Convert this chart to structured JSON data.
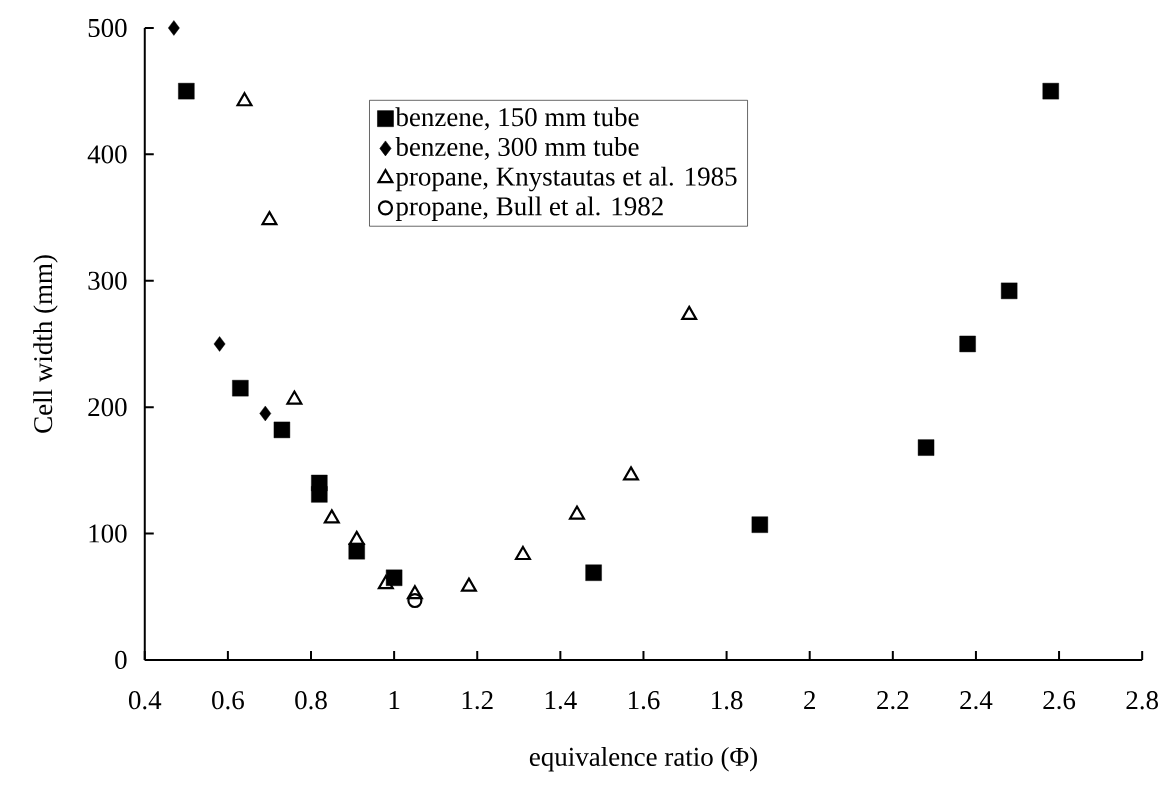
{
  "chart_data": {
    "type": "scatter",
    "xlabel": "equivalence ratio (Φ)",
    "ylabel": "Cell width (mm)",
    "xlim": [
      0.4,
      2.8
    ],
    "ylim": [
      0,
      500
    ],
    "xticks": [
      0.4,
      0.6,
      0.8,
      1,
      1.2,
      1.4,
      1.6,
      1.8,
      2,
      2.2,
      2.4,
      2.6,
      2.8
    ],
    "yticks": [
      0,
      100,
      200,
      300,
      400,
      500
    ],
    "legend": "top",
    "grid": false,
    "series": [
      {
        "name": "benzene, 150 mm tube",
        "color": "#000000",
        "marker": "square",
        "x": [
          0.5,
          0.63,
          0.73,
          0.82,
          0.82,
          0.91,
          1.0,
          1.48,
          1.88,
          2.28,
          2.38,
          2.48,
          2.58
        ],
        "values": [
          450,
          215,
          182,
          140,
          131,
          86,
          65,
          69,
          107,
          168,
          250,
          292,
          450
        ]
      },
      {
        "name": "benzene, 300 mm tube",
        "color": "#000000",
        "marker": "diamond",
        "x": [
          0.47,
          0.58,
          0.69
        ],
        "values": [
          500,
          250,
          195
        ]
      },
      {
        "name": "propane, Knystautas et al. 1985",
        "color": "#000000",
        "marker": "triangle",
        "x": [
          0.64,
          0.7,
          0.76,
          0.85,
          0.91,
          0.98,
          1.05,
          1.18,
          1.31,
          1.44,
          1.57,
          1.71
        ],
        "values": [
          442,
          348,
          206,
          112,
          95,
          60,
          52,
          58,
          83,
          115,
          146,
          273
        ]
      },
      {
        "name": "propane, Bull et al. 1982",
        "color": "#000000",
        "marker": "circle",
        "x": [
          1.05
        ],
        "values": [
          47
        ]
      }
    ]
  }
}
